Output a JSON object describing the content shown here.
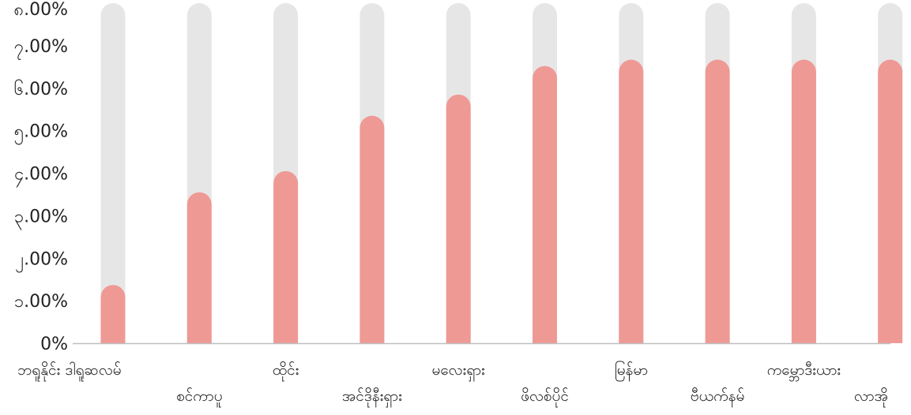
{
  "chart_data": {
    "type": "bar",
    "categories": [
      "ဘရူနိုင်း ဒါရူဆလမ်",
      "စင်ကာပူ",
      "ထိုင်း",
      "အင်ဒိုနီးရှား",
      "မလေးရှား",
      "ဖိလစ်ပိုင်",
      "မြန်မာ",
      "ဗီယက်နမ်",
      "ကမ္ဘောဒီးယား",
      "လာအို"
    ],
    "values": [
      0.0137,
      0.0355,
      0.0405,
      0.0535,
      0.0585,
      0.0652,
      0.0667,
      0.0667,
      0.0667,
      0.0667
    ],
    "ylim": [
      0,
      0.08
    ],
    "yticks": [
      0,
      0.01,
      0.02,
      0.03,
      0.04,
      0.05,
      0.06,
      0.07,
      0.08
    ],
    "ytick_labels": [
      "0%",
      "၁.00%",
      "၂.00%",
      "၃.00%",
      "၄.00%",
      "၅.00%",
      "၆.00%",
      "၇.00%",
      "၈.00%"
    ],
    "title": "",
    "xlabel": "",
    "ylabel": "",
    "grid": false,
    "colors": {
      "bar": "#ef9995",
      "track": "#e6e6e6",
      "axis": "#bfbfbf",
      "text": "#222222"
    }
  }
}
